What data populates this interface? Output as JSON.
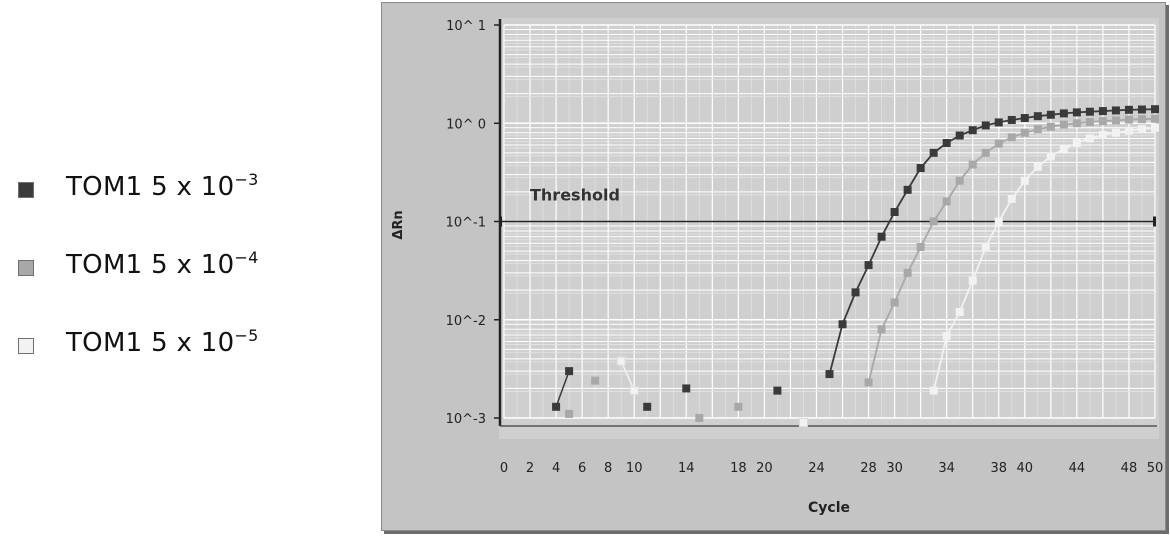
{
  "legend": [
    {
      "label": "TOM1 5 x 10",
      "exponent": "−3",
      "color": "#3a3a3a"
    },
    {
      "label": "TOM1 5 x 10",
      "exponent": "−4",
      "color": "#a8a8a8"
    },
    {
      "label": "TOM1 5 x 10",
      "exponent": "−5",
      "color": "#f2f2f2"
    }
  ],
  "chart_data": {
    "type": "line",
    "xlabel": "Cycle",
    "ylabel": "ΔRn",
    "y_scale": "log",
    "xlim": [
      0,
      50
    ],
    "ylim": [
      0.001,
      10
    ],
    "grid": true,
    "x_ticks": [
      0,
      2,
      4,
      6,
      8,
      10,
      14,
      18,
      20,
      24,
      28,
      30,
      34,
      38,
      40,
      44,
      48,
      50
    ],
    "y_ticks": [
      {
        "value": 0.001,
        "label": "10^-3"
      },
      {
        "value": 0.01,
        "label": "10^-2"
      },
      {
        "value": 0.1,
        "label": "10^-1"
      },
      {
        "value": 1,
        "label": "10^ 0"
      },
      {
        "value": 10,
        "label": "10^ 1"
      }
    ],
    "threshold": {
      "label": "Threshold",
      "value": 0.1
    },
    "series": [
      {
        "name": "TOM1 5 x 10−3",
        "color": "#3a3a3a",
        "noise": [
          [
            4,
            0.0013
          ],
          [
            5,
            0.003
          ],
          [
            11,
            0.0013
          ],
          [
            14,
            0.002
          ],
          [
            21,
            0.0019
          ]
        ],
        "points": [
          [
            25,
            0.0028
          ],
          [
            26,
            0.009
          ],
          [
            27,
            0.019
          ],
          [
            28,
            0.036
          ],
          [
            29,
            0.07
          ],
          [
            30,
            0.125
          ],
          [
            31,
            0.21
          ],
          [
            32,
            0.35
          ],
          [
            33,
            0.5
          ],
          [
            34,
            0.63
          ],
          [
            35,
            0.75
          ],
          [
            36,
            0.85
          ],
          [
            37,
            0.95
          ],
          [
            38,
            1.02
          ],
          [
            39,
            1.08
          ],
          [
            40,
            1.13
          ],
          [
            41,
            1.18
          ],
          [
            42,
            1.22
          ],
          [
            43,
            1.26
          ],
          [
            44,
            1.29
          ],
          [
            45,
            1.31
          ],
          [
            46,
            1.33
          ],
          [
            47,
            1.35
          ],
          [
            48,
            1.37
          ],
          [
            49,
            1.38
          ],
          [
            50,
            1.39
          ]
        ]
      },
      {
        "name": "TOM1 5 x 10−4",
        "color": "#a8a8a8",
        "noise": [
          [
            5,
            0.0011
          ],
          [
            7,
            0.0024
          ],
          [
            15,
            0.001
          ],
          [
            18,
            0.0013
          ]
        ],
        "points": [
          [
            28,
            0.0023
          ],
          [
            29,
            0.008
          ],
          [
            30,
            0.015
          ],
          [
            31,
            0.03
          ],
          [
            32,
            0.055
          ],
          [
            33,
            0.1
          ],
          [
            34,
            0.16
          ],
          [
            35,
            0.26
          ],
          [
            36,
            0.38
          ],
          [
            37,
            0.5
          ],
          [
            38,
            0.62
          ],
          [
            39,
            0.72
          ],
          [
            40,
            0.8
          ],
          [
            41,
            0.87
          ],
          [
            42,
            0.92
          ],
          [
            43,
            0.97
          ],
          [
            44,
            1.0
          ],
          [
            45,
            1.03
          ],
          [
            46,
            1.05
          ],
          [
            47,
            1.07
          ],
          [
            48,
            1.09
          ],
          [
            49,
            1.1
          ],
          [
            50,
            1.11
          ]
        ]
      },
      {
        "name": "TOM1 5 x 10−5",
        "color": "#f2f2f2",
        "noise": [
          [
            9,
            0.0038
          ],
          [
            10,
            0.0019
          ],
          [
            23,
            0.0009
          ]
        ],
        "points": [
          [
            33,
            0.0019
          ],
          [
            34,
            0.0068
          ],
          [
            35,
            0.012
          ],
          [
            36,
            0.025
          ],
          [
            37,
            0.055
          ],
          [
            38,
            0.1
          ],
          [
            39,
            0.17
          ],
          [
            40,
            0.26
          ],
          [
            41,
            0.36
          ],
          [
            42,
            0.46
          ],
          [
            43,
            0.55
          ],
          [
            44,
            0.63
          ],
          [
            45,
            0.7
          ],
          [
            46,
            0.76
          ],
          [
            47,
            0.8
          ],
          [
            48,
            0.84
          ],
          [
            49,
            0.87
          ],
          [
            50,
            0.9
          ]
        ]
      }
    ]
  }
}
